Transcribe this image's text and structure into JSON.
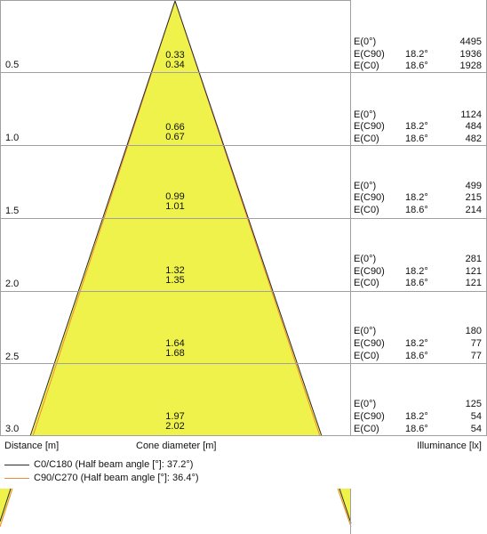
{
  "header": {
    "distance_label": "Distance [m]",
    "cone_label": "Cone diameter [m]",
    "illuminance_label": "Illuminance [lx]"
  },
  "rows": [
    {
      "distance": "0.5",
      "dia_c0": "0.33",
      "dia_c90": "0.34",
      "e0_label": "E(0°)",
      "e0": "4495",
      "ec90_label": "E(C90)",
      "ec90_angle": "18.2°",
      "ec90": "1936",
      "ec0_label": "E(C0)",
      "ec0_angle": "18.6°",
      "ec0": "1928"
    },
    {
      "distance": "1.0",
      "dia_c0": "0.66",
      "dia_c90": "0.67",
      "e0_label": "E(0°)",
      "e0": "1124",
      "ec90_label": "E(C90)",
      "ec90_angle": "18.2°",
      "ec90": "484",
      "ec0_label": "E(C0)",
      "ec0_angle": "18.6°",
      "ec0": "482"
    },
    {
      "distance": "1.5",
      "dia_c0": "0.99",
      "dia_c90": "1.01",
      "e0_label": "E(0°)",
      "e0": "499",
      "ec90_label": "E(C90)",
      "ec90_angle": "18.2°",
      "ec90": "215",
      "ec0_label": "E(C0)",
      "ec0_angle": "18.6°",
      "ec0": "214"
    },
    {
      "distance": "2.0",
      "dia_c0": "1.32",
      "dia_c90": "1.35",
      "e0_label": "E(0°)",
      "e0": "281",
      "ec90_label": "E(C90)",
      "ec90_angle": "18.2°",
      "ec90": "121",
      "ec0_label": "E(C0)",
      "ec0_angle": "18.6°",
      "ec0": "121"
    },
    {
      "distance": "2.5",
      "dia_c0": "1.64",
      "dia_c90": "1.68",
      "e0_label": "E(0°)",
      "e0": "180",
      "ec90_label": "E(C90)",
      "ec90_angle": "18.2°",
      "ec90": "77",
      "ec0_label": "E(C0)",
      "ec0_angle": "18.6°",
      "ec0": "77"
    },
    {
      "distance": "3.0",
      "dia_c0": "1.97",
      "dia_c90": "2.02",
      "e0_label": "E(0°)",
      "e0": "125",
      "ec90_label": "E(C90)",
      "ec90_angle": "18.2°",
      "ec90": "54",
      "ec0_label": "E(C0)",
      "ec0_angle": "18.6°",
      "ec0": "54"
    }
  ],
  "legend": {
    "c0": "C0/C180 (Half beam angle [°]: 37.2°)",
    "c90": "C90/C270 (Half beam angle [°]: 36.4°)"
  },
  "colors": {
    "cone_fill": "#eef24b",
    "c0_line": "#2b2b2b",
    "c90_line": "#f08a3c",
    "grid": "#a0a0a0"
  }
}
